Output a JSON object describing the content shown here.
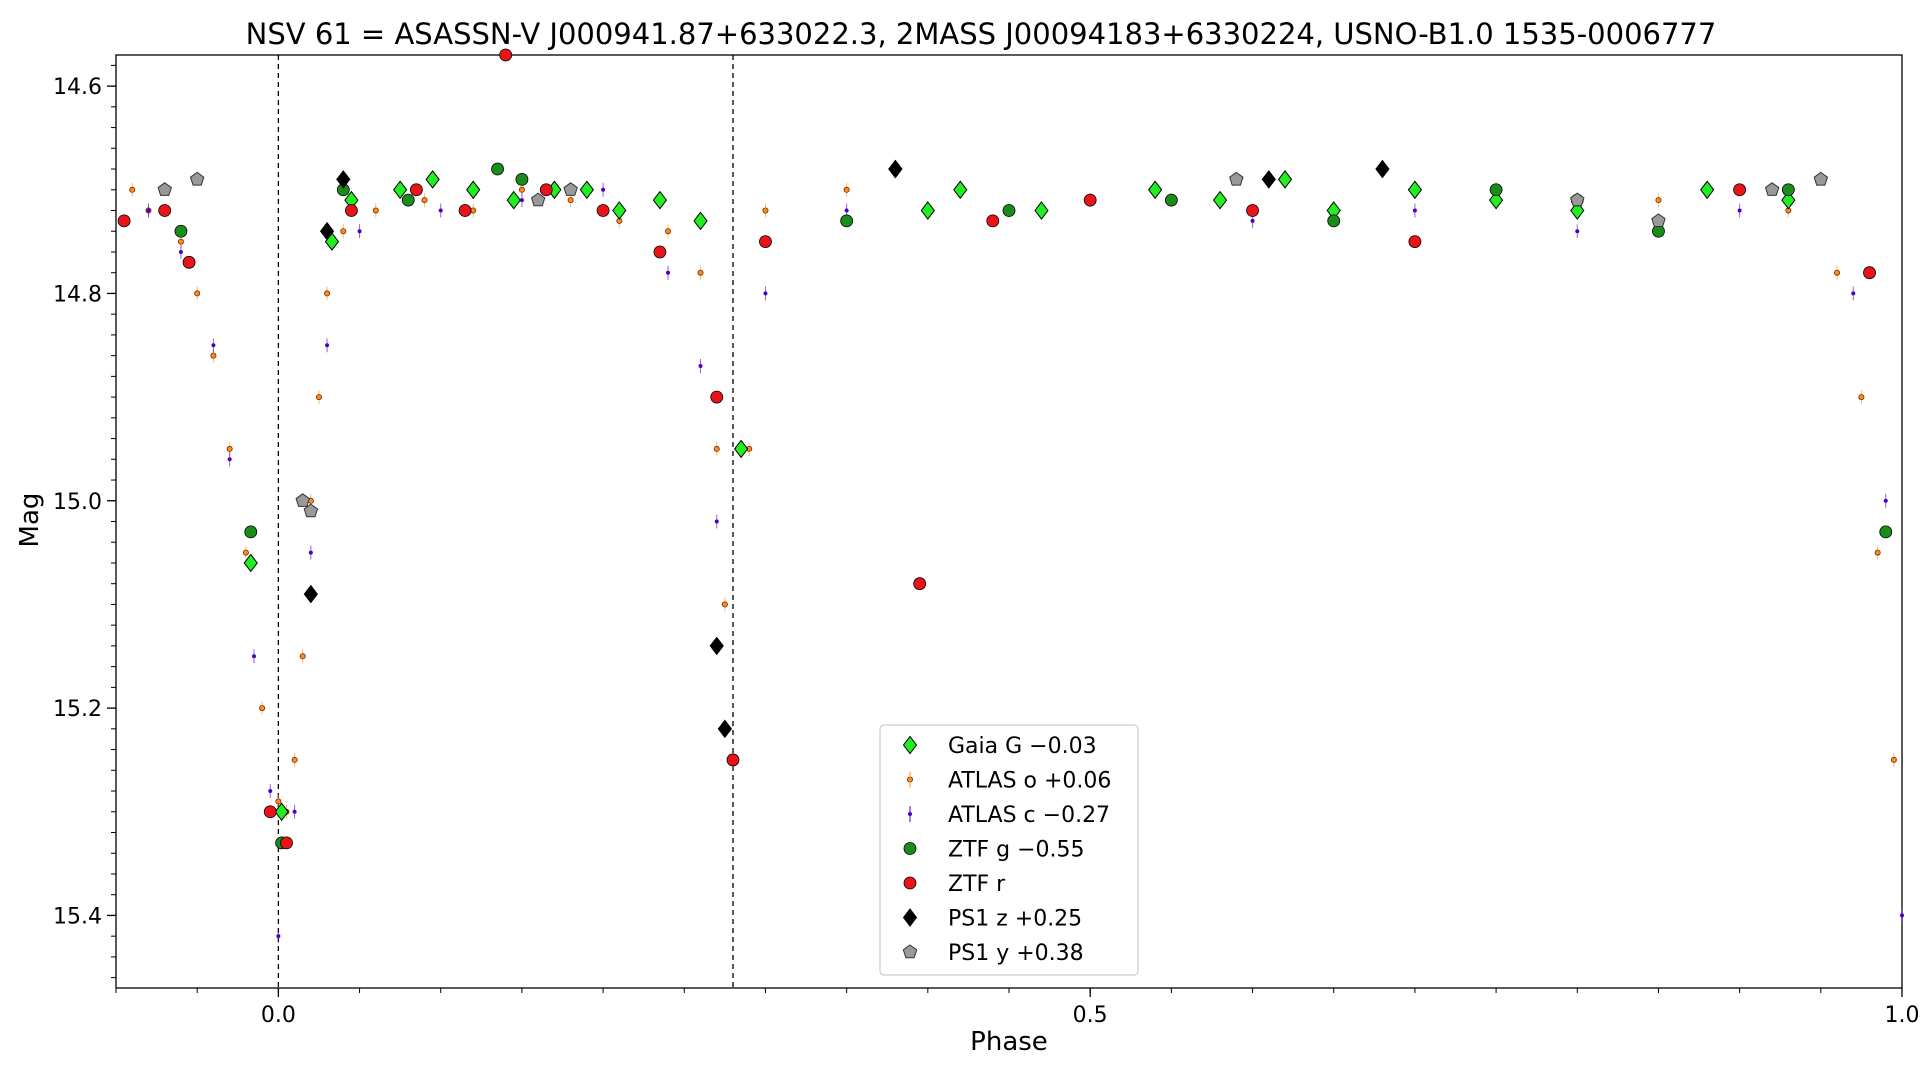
{
  "chart_data": {
    "type": "scatter",
    "title": "NSV 61 = ASASSN-V J000941.87+633022.3, 2MASS J00094183+6330224, USNO-B1.0 1535-0006777",
    "xlabel": "Phase",
    "ylabel": "Mag",
    "xlim": [
      -0.1,
      1.0
    ],
    "ylim": [
      15.47,
      14.57
    ],
    "y_inverted": true,
    "x_ticks": [
      {
        "value": 0.0,
        "label": "0.0"
      },
      {
        "value": 0.5,
        "label": "0.5"
      },
      {
        "value": 1.0,
        "label": "1.0"
      }
    ],
    "y_ticks": [
      {
        "value": 14.6,
        "label": "14.6"
      },
      {
        "value": 14.8,
        "label": "14.8"
      },
      {
        "value": 15.0,
        "label": "15.0"
      },
      {
        "value": 15.2,
        "label": "15.2"
      },
      {
        "value": 15.4,
        "label": "15.4"
      }
    ],
    "vlines": [
      0.0,
      0.28
    ],
    "grid": false,
    "legend_position": "bottom-center",
    "series": [
      {
        "name": "Gaia G −0.03",
        "marker": "diamond",
        "color": "#22ee22",
        "points": [
          [
            0.002,
            15.3
          ],
          [
            0.033,
            14.75
          ],
          [
            0.045,
            14.71
          ],
          [
            0.075,
            14.7
          ],
          [
            0.095,
            14.69
          ],
          [
            0.12,
            14.7
          ],
          [
            0.145,
            14.71
          ],
          [
            0.17,
            14.7
          ],
          [
            0.19,
            14.7
          ],
          [
            0.21,
            14.72
          ],
          [
            0.235,
            14.71
          ],
          [
            0.26,
            14.73
          ],
          [
            0.285,
            14.95
          ],
          [
            0.38,
            14.68
          ],
          [
            0.4,
            14.72
          ],
          [
            0.42,
            14.7
          ],
          [
            0.47,
            14.72
          ],
          [
            0.54,
            14.7
          ],
          [
            0.58,
            14.71
          ],
          [
            0.62,
            14.69
          ],
          [
            0.65,
            14.72
          ],
          [
            0.7,
            14.7
          ],
          [
            0.75,
            14.71
          ],
          [
            0.8,
            14.72
          ],
          [
            0.88,
            14.7
          ],
          [
            0.93,
            14.71
          ],
          [
            -0.017,
            15.06
          ]
        ]
      },
      {
        "name": "ATLAS o +0.06",
        "marker": "circle-small",
        "color": "#ff8c1a",
        "points": [
          [
            -0.09,
            14.7
          ],
          [
            -0.08,
            14.72
          ],
          [
            -0.06,
            14.75
          ],
          [
            -0.05,
            14.8
          ],
          [
            -0.04,
            14.86
          ],
          [
            -0.03,
            14.95
          ],
          [
            -0.02,
            15.05
          ],
          [
            -0.01,
            15.2
          ],
          [
            0.0,
            15.29
          ],
          [
            0.005,
            15.3
          ],
          [
            0.01,
            15.25
          ],
          [
            0.015,
            15.15
          ],
          [
            0.02,
            15.0
          ],
          [
            0.025,
            14.9
          ],
          [
            0.03,
            14.8
          ],
          [
            0.04,
            14.74
          ],
          [
            0.06,
            14.72
          ],
          [
            0.09,
            14.71
          ],
          [
            0.12,
            14.72
          ],
          [
            0.15,
            14.7
          ],
          [
            0.18,
            14.71
          ],
          [
            0.21,
            14.73
          ],
          [
            0.24,
            14.74
          ],
          [
            0.26,
            14.78
          ],
          [
            0.27,
            14.95
          ],
          [
            0.275,
            15.1
          ],
          [
            0.28,
            15.25
          ],
          [
            0.29,
            14.95
          ],
          [
            0.3,
            14.72
          ],
          [
            0.35,
            14.7
          ],
          [
            0.45,
            14.72
          ],
          [
            0.55,
            14.71
          ],
          [
            0.65,
            14.72
          ],
          [
            0.75,
            14.7
          ],
          [
            0.85,
            14.71
          ],
          [
            0.93,
            14.72
          ],
          [
            0.96,
            14.78
          ],
          [
            0.975,
            14.9
          ],
          [
            0.985,
            15.05
          ],
          [
            0.995,
            15.25
          ]
        ]
      },
      {
        "name": "ATLAS c −0.27",
        "marker": "circle-tiny",
        "color": "#4a00c8",
        "points": [
          [
            -0.08,
            14.72
          ],
          [
            -0.06,
            14.76
          ],
          [
            -0.04,
            14.85
          ],
          [
            -0.03,
            14.96
          ],
          [
            -0.015,
            15.15
          ],
          [
            -0.005,
            15.28
          ],
          [
            0.0,
            15.42
          ],
          [
            0.01,
            15.3
          ],
          [
            0.02,
            15.05
          ],
          [
            0.03,
            14.85
          ],
          [
            0.05,
            14.74
          ],
          [
            0.1,
            14.72
          ],
          [
            0.15,
            14.71
          ],
          [
            0.2,
            14.7
          ],
          [
            0.24,
            14.78
          ],
          [
            0.26,
            14.87
          ],
          [
            0.27,
            15.02
          ],
          [
            0.3,
            14.8
          ],
          [
            0.35,
            14.72
          ],
          [
            0.5,
            14.71
          ],
          [
            0.6,
            14.73
          ],
          [
            0.7,
            14.72
          ],
          [
            0.8,
            14.74
          ],
          [
            0.9,
            14.72
          ],
          [
            0.97,
            14.8
          ],
          [
            0.99,
            15.0
          ],
          [
            1.0,
            15.4
          ]
        ]
      },
      {
        "name": "ZTF g −0.55",
        "marker": "circle",
        "color": "#1a8c1a",
        "points": [
          [
            -0.06,
            14.74
          ],
          [
            -0.017,
            15.03
          ],
          [
            0.002,
            15.33
          ],
          [
            0.04,
            14.7
          ],
          [
            0.08,
            14.71
          ],
          [
            0.135,
            14.68
          ],
          [
            0.15,
            14.69
          ],
          [
            0.35,
            14.73
          ],
          [
            0.45,
            14.72
          ],
          [
            0.55,
            14.71
          ],
          [
            0.65,
            14.73
          ],
          [
            0.75,
            14.7
          ],
          [
            0.85,
            14.74
          ],
          [
            0.93,
            14.7
          ],
          [
            0.99,
            15.03
          ]
        ]
      },
      {
        "name": "ZTF r",
        "marker": "circle",
        "color": "#e8141a",
        "points": [
          [
            -0.095,
            14.73
          ],
          [
            -0.07,
            14.72
          ],
          [
            -0.055,
            14.77
          ],
          [
            -0.005,
            15.3
          ],
          [
            0.005,
            15.33
          ],
          [
            0.045,
            14.72
          ],
          [
            0.085,
            14.7
          ],
          [
            0.115,
            14.72
          ],
          [
            0.14,
            14.57
          ],
          [
            0.165,
            14.7
          ],
          [
            0.2,
            14.72
          ],
          [
            0.235,
            14.76
          ],
          [
            0.27,
            14.9
          ],
          [
            0.28,
            15.25
          ],
          [
            0.3,
            14.75
          ],
          [
            0.395,
            15.08
          ],
          [
            0.44,
            14.73
          ],
          [
            0.5,
            14.71
          ],
          [
            0.6,
            14.72
          ],
          [
            0.7,
            14.75
          ],
          [
            0.8,
            14.71
          ],
          [
            0.9,
            14.7
          ],
          [
            0.98,
            14.78
          ]
        ]
      },
      {
        "name": "PS1 z +0.25",
        "marker": "diamond",
        "color": "#000000",
        "points": [
          [
            0.02,
            15.09
          ],
          [
            0.03,
            14.74
          ],
          [
            0.04,
            14.69
          ],
          [
            0.27,
            15.14
          ],
          [
            0.275,
            15.22
          ],
          [
            0.38,
            14.68
          ],
          [
            0.61,
            14.69
          ],
          [
            0.68,
            14.68
          ]
        ]
      },
      {
        "name": "PS1 y +0.38",
        "marker": "pentagon",
        "color": "#999999",
        "points": [
          [
            -0.07,
            14.7
          ],
          [
            -0.05,
            14.69
          ],
          [
            0.015,
            15.0
          ],
          [
            0.02,
            15.01
          ],
          [
            0.16,
            14.71
          ],
          [
            0.18,
            14.7
          ],
          [
            0.59,
            14.69
          ],
          [
            0.8,
            14.71
          ],
          [
            0.85,
            14.73
          ],
          [
            0.92,
            14.7
          ],
          [
            0.95,
            14.69
          ]
        ]
      }
    ]
  }
}
